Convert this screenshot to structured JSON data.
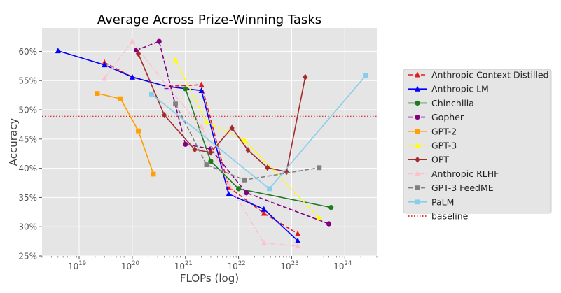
{
  "chart_data": {
    "type": "line",
    "title": "Average Across Prize-Winning Tasks",
    "xlabel": "FLOPs (log)",
    "ylabel": "Accuracy",
    "x_scale": "log",
    "xlim": [
      2e+18,
      4e+24
    ],
    "ylim": [
      0.25,
      0.64
    ],
    "x_ticks": [
      {
        "value": 1e+19,
        "base": "10",
        "exp": "19"
      },
      {
        "value": 1e+20,
        "base": "10",
        "exp": "20"
      },
      {
        "value": 1e+21,
        "base": "10",
        "exp": "21"
      },
      {
        "value": 1e+22,
        "base": "10",
        "exp": "22"
      },
      {
        "value": 1e+23,
        "base": "10",
        "exp": "23"
      },
      {
        "value": 1e+24,
        "base": "10",
        "exp": "24"
      }
    ],
    "y_ticks": [
      {
        "value": 0.25,
        "label": "25%"
      },
      {
        "value": 0.3,
        "label": "30%"
      },
      {
        "value": 0.35,
        "label": "35%"
      },
      {
        "value": 0.4,
        "label": "40%"
      },
      {
        "value": 0.45,
        "label": "45%"
      },
      {
        "value": 0.5,
        "label": "50%"
      },
      {
        "value": 0.55,
        "label": "55%"
      },
      {
        "value": 0.6,
        "label": "60%"
      }
    ],
    "grid": true,
    "legend_position": "outside-right",
    "series": [
      {
        "name": "Anthropic Context Distilled",
        "color": "#e41a1c",
        "dash": "dashed",
        "marker": "triangle",
        "x": [
          3e+19,
          1e+20,
          4.5e+20,
          2e+21,
          6.5e+21,
          3e+22,
          1.3e+23
        ],
        "y": [
          0.581,
          0.556,
          0.54,
          0.543,
          0.368,
          0.323,
          0.288
        ]
      },
      {
        "name": "Anthropic LM",
        "color": "#0000ff",
        "dash": "solid",
        "marker": "triangle",
        "x": [
          4e+18,
          3e+19,
          1e+20,
          4.5e+20,
          2e+21,
          6.5e+21,
          3e+22,
          1.3e+23
        ],
        "y": [
          0.601,
          0.577,
          0.556,
          0.54,
          0.533,
          0.356,
          0.33,
          0.276
        ]
      },
      {
        "name": "Chinchilla",
        "color": "#1e7b1e",
        "dash": "solid",
        "marker": "circle",
        "x": [
          1e+21,
          3e+21,
          1e+22,
          5.5e+23
        ],
        "y": [
          0.536,
          0.412,
          0.365,
          0.333
        ]
      },
      {
        "name": "Gopher",
        "color": "#800080",
        "dash": "dashed",
        "marker": "circle",
        "x": [
          1.2e+20,
          3.2e+20,
          1e+21,
          3e+21,
          1.4e+22,
          5e+23
        ],
        "y": [
          0.602,
          0.617,
          0.441,
          0.433,
          0.358,
          0.305
        ]
      },
      {
        "name": "GPT-2",
        "color": "#ff9f00",
        "dash": "solid",
        "marker": "square",
        "x": [
          2.2e+19,
          6e+19,
          1.3e+20,
          2.5e+20
        ],
        "y": [
          0.528,
          0.519,
          0.464,
          0.39
        ]
      },
      {
        "name": "GPT-3",
        "color": "#ffff00",
        "dash": "dashed",
        "marker": "triangle",
        "x": [
          6.5e+20,
          2.5e+21,
          1.3e+22,
          3.3e+23
        ],
        "y": [
          0.585,
          0.479,
          0.448,
          0.315
        ]
      },
      {
        "name": "OPT",
        "color": "#a52a2a",
        "dash": "solid",
        "marker": "diamond",
        "x": [
          1.3e+20,
          4e+20,
          1.5e+21,
          3e+21,
          7.5e+21,
          1.5e+22,
          3.5e+22,
          8e+22,
          1.8e+23
        ],
        "y": [
          0.596,
          0.491,
          0.432,
          0.427,
          0.469,
          0.431,
          0.401,
          0.394,
          0.556
        ]
      },
      {
        "name": "Anthropic RLHF",
        "color": "#ffc0cb",
        "dash": "dashdot",
        "marker": "triangle",
        "x": [
          3e+19,
          1e+20,
          4.5e+20,
          2e+21,
          6.5e+21,
          3e+22,
          1.3e+23
        ],
        "y": [
          0.554,
          0.617,
          0.541,
          0.471,
          0.373,
          0.272,
          0.267
        ]
      },
      {
        "name": "GPT-3 FeedME",
        "color": "#808080",
        "dash": "dashed",
        "marker": "square",
        "x": [
          6.5e+20,
          2.5e+21,
          1.3e+22,
          3.3e+23
        ],
        "y": [
          0.51,
          0.406,
          0.38,
          0.401
        ]
      },
      {
        "name": "PaLM",
        "color": "#87ceeb",
        "dash": "solid",
        "marker": "square",
        "x": [
          2.3e+20,
          3.8e+22,
          2.5e+24
        ],
        "y": [
          0.527,
          0.365,
          0.559
        ]
      }
    ],
    "baseline": {
      "name": "baseline",
      "color": "#dd0000",
      "dash": "dotted",
      "y": 0.489
    }
  }
}
